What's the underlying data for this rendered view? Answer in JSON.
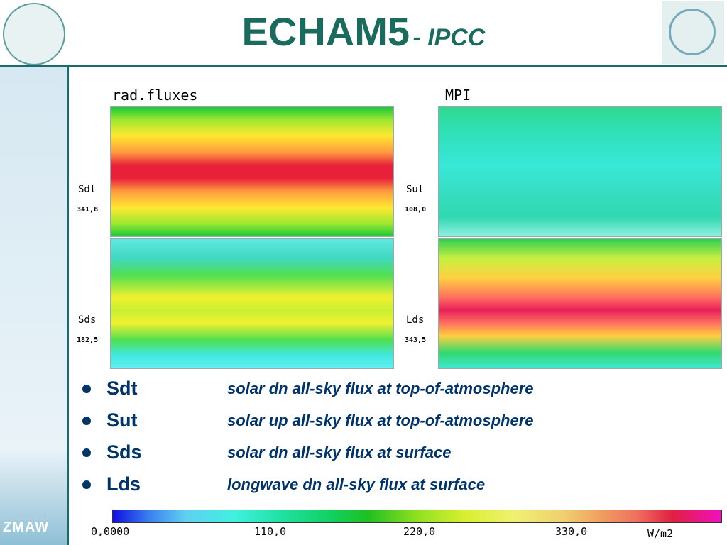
{
  "header": {
    "title": "ECHAM5",
    "subtitle": "- IPCC"
  },
  "figure": {
    "left_title": "rad.fluxes",
    "right_title": "MPI",
    "panels": [
      {
        "name": "Sdt",
        "value": "341,8"
      },
      {
        "name": "Sut",
        "value": "108,0"
      },
      {
        "name": "Sds",
        "value": "182,5"
      },
      {
        "name": "Lds",
        "value": "343,5"
      }
    ]
  },
  "bullets": [
    {
      "term": "Sdt",
      "description": "solar dn all-sky flux at top-of-atmosphere"
    },
    {
      "term": "Sut",
      "description": "solar up all-sky flux at top-of-atmosphere"
    },
    {
      "term": "Sds",
      "description": "solar dn all-sky flux at surface"
    },
    {
      "term": "Lds",
      "description": "longwave dn all-sky flux at surface"
    }
  ],
  "colorbar": {
    "ticks": [
      "0,0000",
      "110,0",
      "220,0",
      "330,0"
    ],
    "unit": "W/m2"
  },
  "logo": "ZMAW"
}
